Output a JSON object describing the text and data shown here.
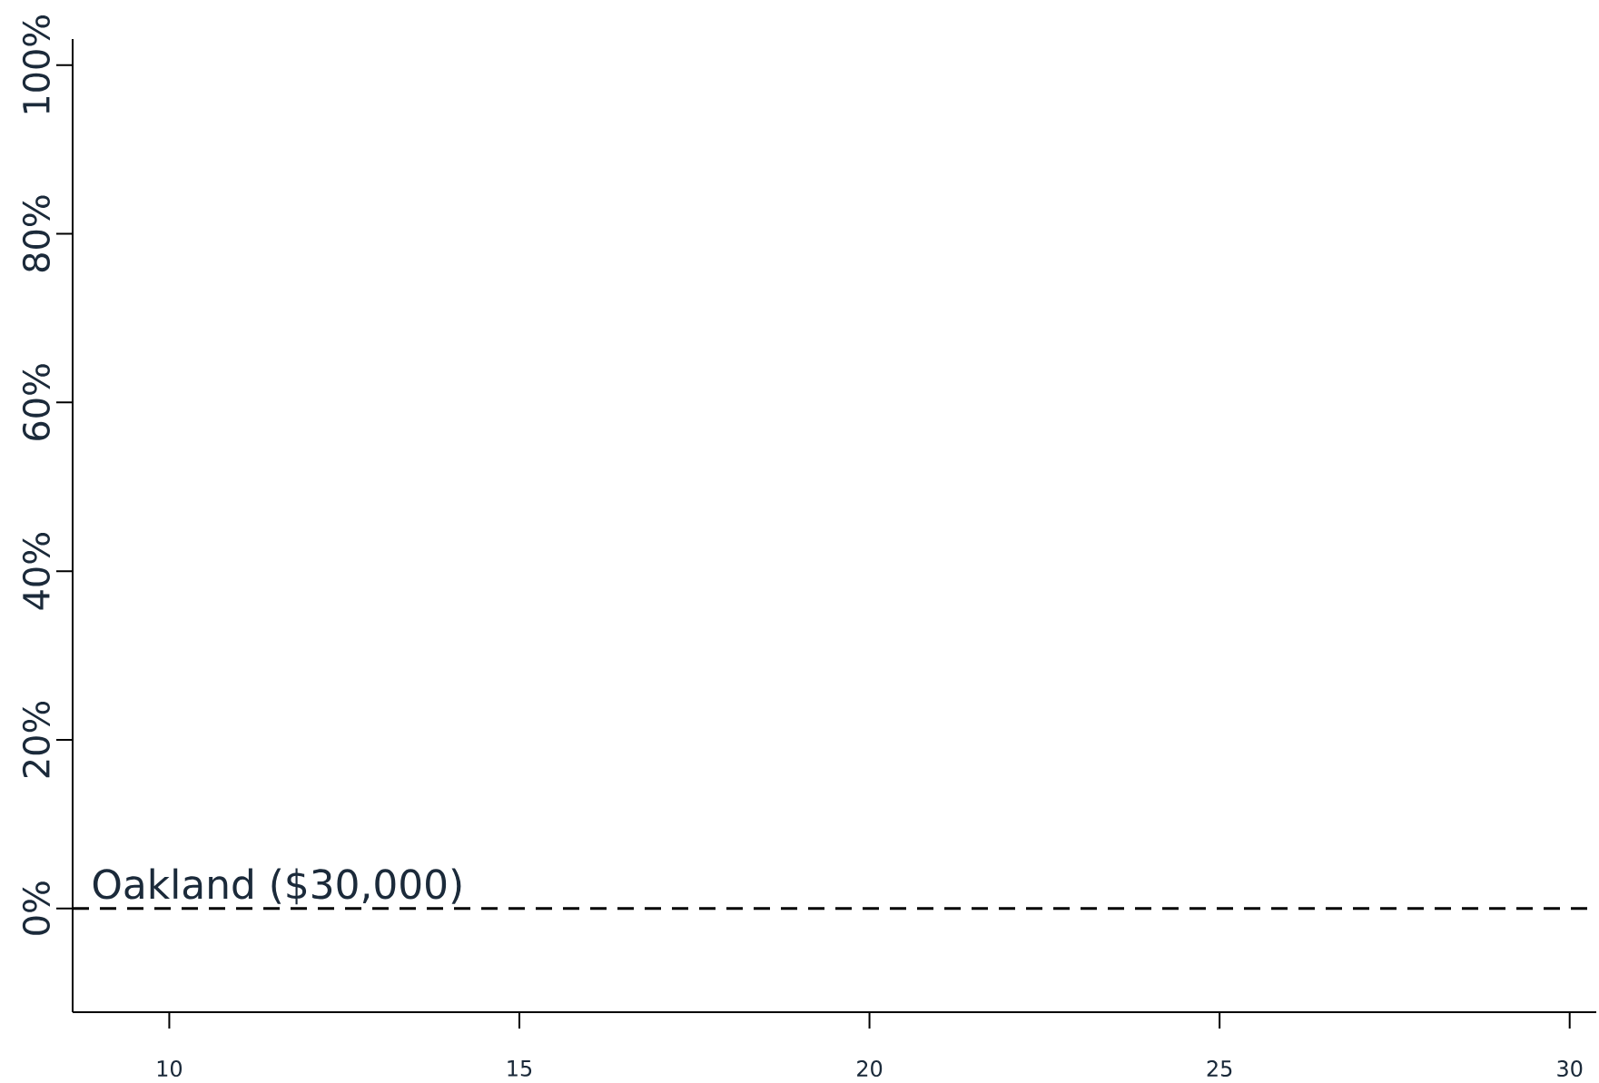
{
  "chart_data": {
    "type": "line",
    "xlim": [
      8.62,
      30.38
    ],
    "ylim": [
      -12.3,
      103.1
    ],
    "xticks": [
      10,
      15,
      20,
      25,
      30
    ],
    "yticks": [
      {
        "value": 0,
        "label": "0%"
      },
      {
        "value": 20,
        "label": "20%"
      },
      {
        "value": 40,
        "label": "40%"
      },
      {
        "value": 60,
        "label": "60%"
      },
      {
        "value": 80,
        "label": "80%"
      },
      {
        "value": 100,
        "label": "100%"
      }
    ],
    "ref_lines": [
      {
        "axis": "y",
        "value": 0,
        "label": "Oakland ($30,000)",
        "color": "#000000",
        "line_style": "dashed"
      }
    ]
  }
}
